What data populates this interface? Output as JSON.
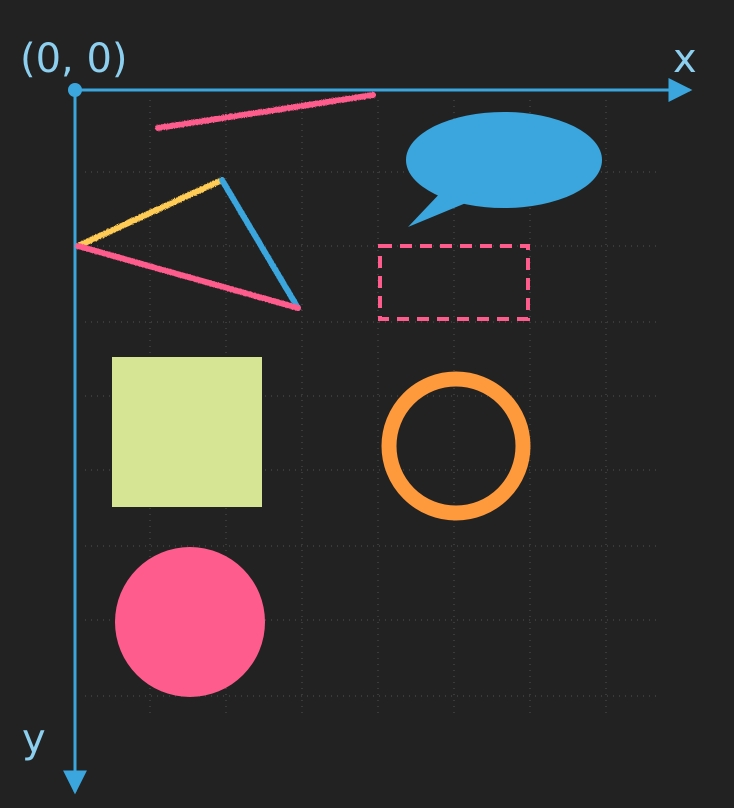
{
  "canvas": {
    "background": "#222222",
    "grid_color": "#3a3a3a"
  },
  "axes": {
    "origin_label": "(0, 0)",
    "x_label": "x",
    "y_label": "y",
    "color": "#3aa6dd"
  },
  "shapes": {
    "pencil_line": {
      "color": "#ff5c8e"
    },
    "triangle": {
      "edge_colors": [
        "#ffcc55",
        "#3aa6dd",
        "#ff5c8e"
      ]
    },
    "speech_bubble": {
      "color": "#3aa6dd"
    },
    "dashed_rectangle": {
      "color": "#ff5c8e"
    },
    "square": {
      "color": "#d6e594"
    },
    "ring": {
      "color": "#ff9a3c"
    },
    "disc": {
      "color": "#ff5c8e"
    }
  }
}
